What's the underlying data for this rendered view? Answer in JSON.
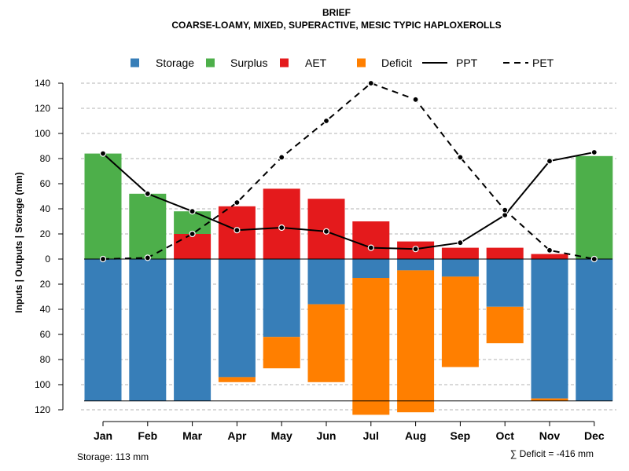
{
  "chart_data": {
    "type": "bar",
    "title": "BRIEF",
    "subtitle": "COARSE-LOAMY, MIXED, SUPERACTIVE, MESIC TYPIC HAPLOXEROLLS",
    "ylabel": "Inputs | Outputs | Storage    (mm)",
    "ylim": [
      -120,
      140
    ],
    "yticks": [
      140,
      120,
      100,
      80,
      60,
      40,
      20,
      0,
      -20,
      -40,
      -60,
      -80,
      -100,
      -120
    ],
    "ytick_labels": [
      "140",
      "120",
      "100",
      "80",
      "60",
      "40",
      "20",
      "0",
      "20",
      "40",
      "60",
      "80",
      "100",
      "120"
    ],
    "grid": "horizontal dashed",
    "legend_position": "top",
    "categories": [
      "Jan",
      "Feb",
      "Mar",
      "Apr",
      "May",
      "Jun",
      "Jul",
      "Aug",
      "Sep",
      "Oct",
      "Nov",
      "Dec"
    ],
    "legend": [
      {
        "label": "Storage",
        "kind": "box",
        "color": "#377EB8"
      },
      {
        "label": "Surplus",
        "kind": "box",
        "color": "#4DAF4A"
      },
      {
        "label": "AET",
        "kind": "box",
        "color": "#E41A1C"
      },
      {
        "label": "Deficit",
        "kind": "box",
        "color": "#FF7F00"
      },
      {
        "label": "PPT",
        "kind": "solid-line",
        "color": "#000000"
      },
      {
        "label": "PET",
        "kind": "dashed-line",
        "color": "#000000"
      }
    ],
    "upper_series": [
      {
        "name": "AET",
        "color": "#E41A1C",
        "values": [
          0,
          0,
          20,
          42,
          56,
          48,
          30,
          14,
          9,
          9,
          4,
          0
        ]
      },
      {
        "name": "Surplus",
        "color": "#4DAF4A",
        "values": [
          84,
          52,
          18,
          0,
          0,
          0,
          0,
          0,
          0,
          0,
          0,
          82
        ]
      }
    ],
    "lower_series": [
      {
        "name": "Storage",
        "color": "#377EB8",
        "values": [
          113,
          113,
          113,
          94,
          62,
          36,
          15,
          9,
          14,
          38,
          111,
          113
        ]
      },
      {
        "name": "Deficit",
        "color": "#FF7F00",
        "values": [
          0,
          0,
          0,
          4,
          25,
          62,
          109,
          113,
          72,
          29,
          2,
          0
        ]
      }
    ],
    "lines": [
      {
        "name": "PPT",
        "style": "solid",
        "values": [
          84,
          52,
          38,
          23,
          25,
          22,
          9,
          8,
          13,
          35,
          78,
          85
        ]
      },
      {
        "name": "PET",
        "style": "dashed",
        "values": [
          0,
          1,
          20,
          45,
          81,
          110,
          140,
          127,
          81,
          39,
          7,
          0
        ]
      }
    ],
    "storage_capacity": 113,
    "footnote_left": "Storage: 113 mm",
    "footnote_right": "∑ Deficit = -416 mm"
  }
}
